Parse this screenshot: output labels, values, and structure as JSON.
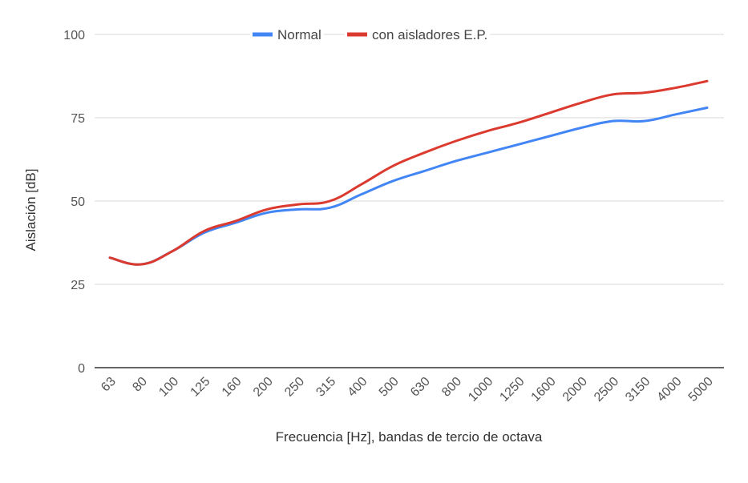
{
  "chart_data": {
    "type": "line",
    "title": "",
    "xlabel": "Frecuencia [Hz], bandas de tercio de octava",
    "ylabel": "Aislación [dB]",
    "ylim": [
      0,
      100
    ],
    "yticks": [
      "0",
      "25",
      "50",
      "75",
      "100"
    ],
    "grid": true,
    "legend_position": "top",
    "categories": [
      "63",
      "80",
      "100",
      "125",
      "160",
      "200",
      "250",
      "315",
      "400",
      "500",
      "630",
      "800",
      "1000",
      "1250",
      "1600",
      "2000",
      "2500",
      "3150",
      "4000",
      "5000"
    ],
    "series": [
      {
        "name": "Normal",
        "color": "#4285f4",
        "values": [
          33,
          31,
          35,
          40.5,
          43.5,
          46.5,
          47.5,
          48,
          52,
          56,
          59,
          62,
          64.5,
          67,
          69.5,
          72,
          74,
          74,
          76,
          78
        ]
      },
      {
        "name": "con aisladores E.P.",
        "color": "#db3a2f",
        "values": [
          33,
          31,
          35,
          41,
          44,
          47.5,
          49,
          50,
          55,
          60.5,
          64.5,
          68,
          71,
          73.5,
          76.5,
          79.5,
          82,
          82.5,
          84,
          86
        ]
      }
    ]
  }
}
